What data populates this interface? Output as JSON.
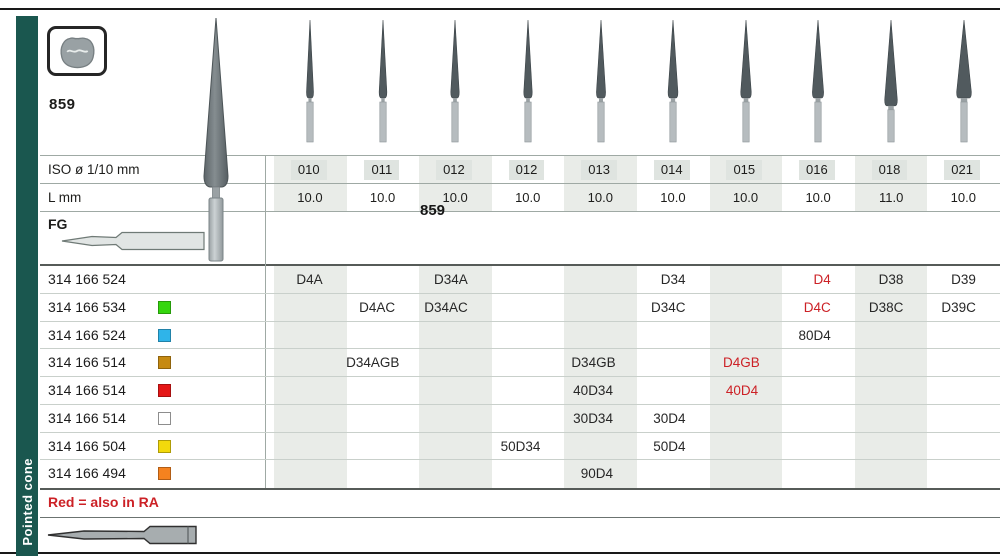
{
  "meta": {
    "figure_number": "859",
    "ghost_number": "859",
    "sidebar_label": "Pointed cone",
    "footnote": "Red = also in RA"
  },
  "labels": {
    "iso": "ISO ø 1/10 mm",
    "l": "L mm",
    "shank": "FG"
  },
  "colors": {
    "accent_red": "#cc2126",
    "stripe": "#e9ece8",
    "sidebar": "#1a574f"
  },
  "columns": [
    {
      "iso": "010",
      "l": "10.0"
    },
    {
      "iso": "011",
      "l": "10.0"
    },
    {
      "iso": "012",
      "l": "10.0"
    },
    {
      "iso": "012",
      "l": "10.0"
    },
    {
      "iso": "013",
      "l": "10.0"
    },
    {
      "iso": "014",
      "l": "10.0"
    },
    {
      "iso": "015",
      "l": "10.0"
    },
    {
      "iso": "016",
      "l": "10.0"
    },
    {
      "iso": "018",
      "l": "11.0"
    },
    {
      "iso": "021",
      "l": "10.0"
    }
  ],
  "rows": [
    {
      "code": "314 166 524",
      "swatch": null,
      "cells": [
        {
          "col": 0,
          "text": "D4A"
        },
        {
          "col": 2,
          "text": "D34A"
        },
        {
          "col": 5,
          "text": "D34"
        },
        {
          "col": 7,
          "text": "D4",
          "red": true
        },
        {
          "col": 8,
          "text": "D38"
        },
        {
          "col": 9,
          "text": "D39"
        }
      ]
    },
    {
      "code": "314 166 534",
      "swatch": "#35d60e",
      "cells": [
        {
          "col": 1,
          "text": "D4AC"
        },
        {
          "col": 2,
          "text": "D34AC"
        },
        {
          "col": 5,
          "text": "D34C"
        },
        {
          "col": 7,
          "text": "D4C",
          "red": true
        },
        {
          "col": 8,
          "text": "D38C"
        },
        {
          "col": 9,
          "text": "D39C"
        }
      ]
    },
    {
      "code": "314 166 524",
      "swatch": "#2fb4e9",
      "cells": [
        {
          "col": 7,
          "text": "80D4"
        }
      ]
    },
    {
      "code": "314 166 514",
      "swatch": "#c68a12",
      "cells": [
        {
          "col": 1,
          "text": "D34AGB"
        },
        {
          "col": 4,
          "text": "D34GB"
        },
        {
          "col": 6,
          "text": "D4GB",
          "red": true
        }
      ]
    },
    {
      "code": "314 166 514",
      "swatch": "#e51717",
      "cells": [
        {
          "col": 4,
          "text": "40D34"
        },
        {
          "col": 6,
          "text": "40D4",
          "red": true
        }
      ]
    },
    {
      "code": "314 166 514",
      "swatch": "#ffffff",
      "cells": [
        {
          "col": 4,
          "text": "30D34"
        },
        {
          "col": 5,
          "text": "30D4"
        }
      ]
    },
    {
      "code": "314 166 504",
      "swatch": "#f2d90c",
      "cells": [
        {
          "col": 3,
          "text": "50D34"
        },
        {
          "col": 5,
          "text": "50D4"
        }
      ]
    },
    {
      "code": "314 166 494",
      "swatch": "#f5821f",
      "cells": [
        {
          "col": 4,
          "text": "90D4"
        }
      ]
    }
  ]
}
